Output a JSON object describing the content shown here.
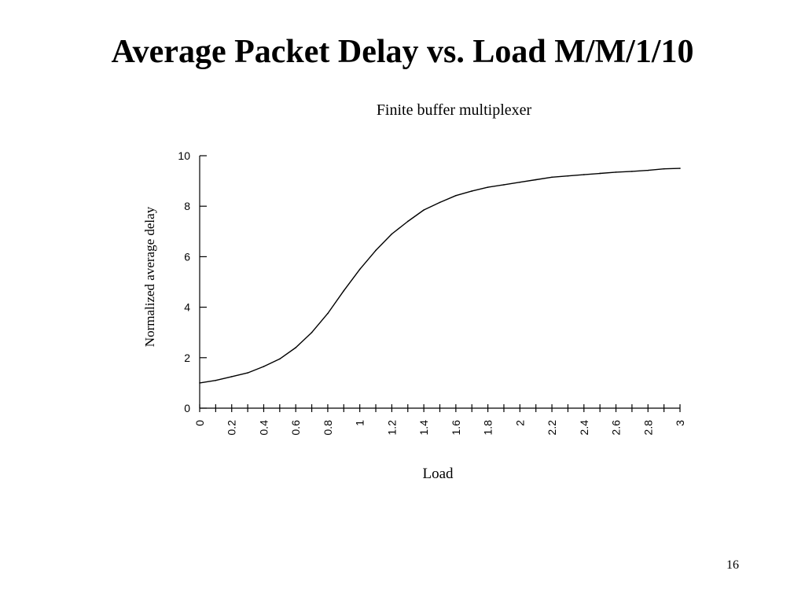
{
  "slide": {
    "title": "Average Packet Delay vs. Load M/M/1/10",
    "page_number": "16"
  },
  "chart_data": {
    "type": "line",
    "subtitle": "Finite buffer multiplexer",
    "xlabel": "Load",
    "ylabel": "Normalized average delay",
    "xlim": [
      0,
      3
    ],
    "ylim": [
      0,
      10
    ],
    "x_tick_labels": [
      "0",
      "0.2",
      "0.4",
      "0.6",
      "0.8",
      "1",
      "1.2",
      "1.4",
      "1.6",
      "1.8",
      "2",
      "2.2",
      "2.4",
      "2.6",
      "2.8",
      "3"
    ],
    "y_tick_labels": [
      "0",
      "2",
      "4",
      "6",
      "8",
      "10"
    ],
    "grid": false,
    "legend": "none",
    "line_color": "#000000",
    "series": [
      {
        "x": [
          0,
          0.1,
          0.2,
          0.3,
          0.4,
          0.5,
          0.6,
          0.7,
          0.8,
          0.9,
          1.0,
          1.1,
          1.2,
          1.3,
          1.4,
          1.5,
          1.6,
          1.7,
          1.8,
          1.9,
          2.0,
          2.1,
          2.2,
          2.3,
          2.4,
          2.5,
          2.6,
          2.7,
          2.8,
          2.9,
          3.0
        ],
        "y": [
          1.0,
          1.1,
          1.25,
          1.4,
          1.65,
          1.95,
          2.4,
          3.0,
          3.75,
          4.65,
          5.5,
          6.25,
          6.9,
          7.4,
          7.85,
          8.15,
          8.42,
          8.6,
          8.75,
          8.85,
          8.95,
          9.05,
          9.15,
          9.2,
          9.25,
          9.3,
          9.35,
          9.38,
          9.42,
          9.48,
          9.5
        ]
      }
    ]
  }
}
